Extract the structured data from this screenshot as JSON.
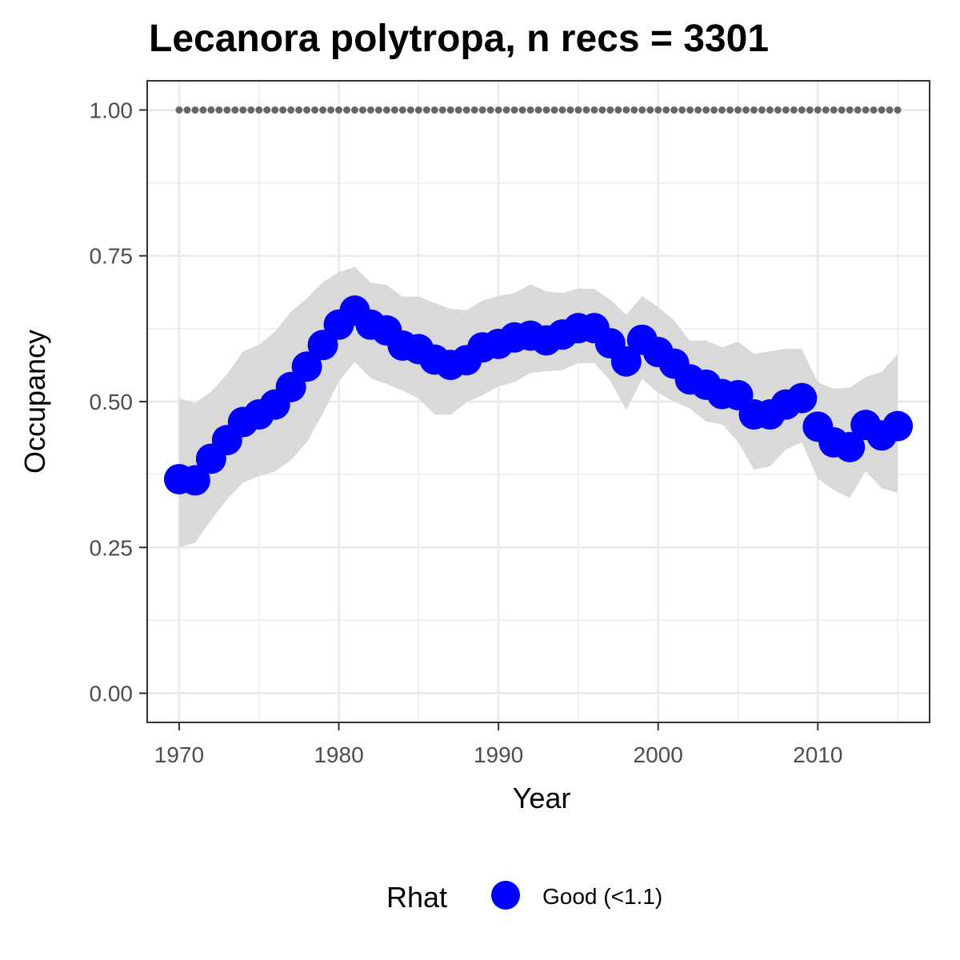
{
  "chart_data": {
    "type": "line",
    "title": "Lecanora polytropa, n recs = 3301",
    "xlabel": "Year",
    "ylabel": "Occupancy",
    "xlim": [
      1968,
      2017
    ],
    "ylim": [
      -0.05,
      1.05
    ],
    "x_ticks": [
      1970,
      1980,
      1990,
      2000,
      2010
    ],
    "x_tick_labels": [
      "1970",
      "1980",
      "1990",
      "2000",
      "2010"
    ],
    "y_ticks": [
      0,
      0.25,
      0.5,
      0.75,
      1.0
    ],
    "y_tick_labels": [
      "0.00",
      "0.25",
      "0.50",
      "0.75",
      "1.00"
    ],
    "grid": true,
    "legend_position": "bottom",
    "legend": {
      "title": "Rhat",
      "items": [
        {
          "label": "Good (<1.1)",
          "color": "#0000ff"
        }
      ]
    },
    "colors": {
      "points": "#0000ff",
      "ribbon": "#d9d9d9",
      "reference": "#666666",
      "grid": "#ebebeb",
      "axis_text": "#4d4d4d",
      "panel_border": "#333333"
    },
    "x": [
      1970,
      1971,
      1972,
      1973,
      1974,
      1975,
      1976,
      1977,
      1978,
      1979,
      1980,
      1981,
      1982,
      1983,
      1984,
      1985,
      1986,
      1987,
      1988,
      1989,
      1990,
      1991,
      1992,
      1993,
      1994,
      1995,
      1996,
      1997,
      1998,
      1999,
      2000,
      2001,
      2002,
      2003,
      2004,
      2005,
      2006,
      2007,
      2008,
      2009,
      2010,
      2011,
      2012,
      2013,
      2014,
      2015
    ],
    "series": [
      {
        "name": "Good (<1.1)",
        "values": [
          0.367,
          0.365,
          0.402,
          0.434,
          0.465,
          0.478,
          0.495,
          0.525,
          0.56,
          0.597,
          0.632,
          0.656,
          0.632,
          0.622,
          0.596,
          0.59,
          0.572,
          0.563,
          0.571,
          0.593,
          0.599,
          0.61,
          0.613,
          0.605,
          0.615,
          0.626,
          0.626,
          0.6,
          0.569,
          0.606,
          0.585,
          0.565,
          0.538,
          0.529,
          0.513,
          0.511,
          0.478,
          0.478,
          0.495,
          0.506,
          0.457,
          0.43,
          0.422,
          0.46,
          0.442,
          0.458
        ]
      }
    ],
    "ribbon": {
      "lower": [
        0.25,
        0.258,
        0.297,
        0.332,
        0.361,
        0.372,
        0.38,
        0.4,
        0.43,
        0.48,
        0.535,
        0.568,
        0.54,
        0.53,
        0.519,
        0.505,
        0.478,
        0.477,
        0.499,
        0.511,
        0.526,
        0.533,
        0.549,
        0.552,
        0.554,
        0.566,
        0.566,
        0.536,
        0.485,
        0.539,
        0.515,
        0.5,
        0.488,
        0.466,
        0.461,
        0.431,
        0.383,
        0.389,
        0.418,
        0.43,
        0.368,
        0.348,
        0.335,
        0.381,
        0.351,
        0.344
      ],
      "upper": [
        0.506,
        0.497,
        0.517,
        0.547,
        0.586,
        0.597,
        0.62,
        0.654,
        0.677,
        0.705,
        0.722,
        0.731,
        0.704,
        0.7,
        0.68,
        0.68,
        0.669,
        0.659,
        0.657,
        0.673,
        0.681,
        0.686,
        0.701,
        0.689,
        0.686,
        0.694,
        0.693,
        0.675,
        0.649,
        0.681,
        0.662,
        0.639,
        0.604,
        0.605,
        0.593,
        0.603,
        0.582,
        0.586,
        0.591,
        0.59,
        0.533,
        0.522,
        0.524,
        0.542,
        0.551,
        0.581
      ]
    },
    "reference_line": {
      "y": 1.0,
      "style": "dotted"
    }
  }
}
